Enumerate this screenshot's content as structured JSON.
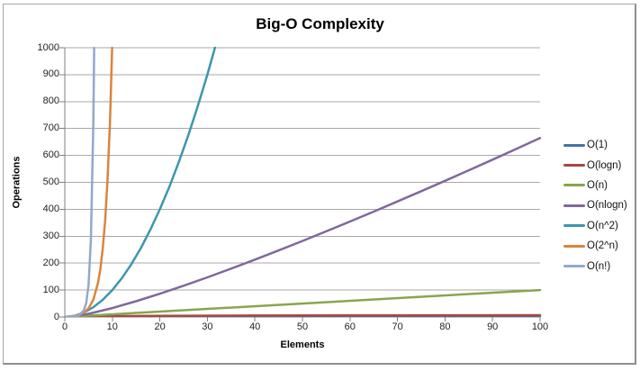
{
  "window": {
    "border_color": "#a6a6a6",
    "background": "#ffffff"
  },
  "chart_data": {
    "type": "line",
    "title": "Big-O Complexity",
    "xlabel": "Elements",
    "ylabel": "Operations",
    "xlim": [
      0,
      100
    ],
    "ylim": [
      0,
      1000
    ],
    "x_ticks": [
      0,
      10,
      20,
      30,
      40,
      50,
      60,
      70,
      80,
      90,
      100
    ],
    "y_ticks": [
      0,
      100,
      200,
      300,
      400,
      500,
      600,
      700,
      800,
      900,
      1000
    ],
    "grid": "horizontal",
    "grid_color": "#a8a8a8",
    "axis_color": "#808080",
    "legend_position": "right",
    "series": [
      {
        "name": "O(1)",
        "color": "#4572A7",
        "points": [
          [
            0,
            1
          ],
          [
            100,
            1
          ]
        ]
      },
      {
        "name": "O(logn)",
        "color": "#AA4643",
        "points": [
          [
            1,
            0
          ],
          [
            2,
            1
          ],
          [
            3,
            1.58
          ],
          [
            5,
            2.32
          ],
          [
            10,
            3.32
          ],
          [
            20,
            4.32
          ],
          [
            40,
            5.32
          ],
          [
            70,
            6.13
          ],
          [
            100,
            6.64
          ]
        ]
      },
      {
        "name": "O(n)",
        "color": "#89A54E",
        "points": [
          [
            0,
            0
          ],
          [
            100,
            100
          ]
        ]
      },
      {
        "name": "O(nlogn)",
        "color": "#80699B",
        "points": [
          [
            1,
            0
          ],
          [
            5,
            11.6
          ],
          [
            10,
            33.2
          ],
          [
            15,
            58.6
          ],
          [
            20,
            86.4
          ],
          [
            25,
            116.1
          ],
          [
            30,
            147.2
          ],
          [
            35,
            179.5
          ],
          [
            40,
            212.9
          ],
          [
            45,
            247.1
          ],
          [
            50,
            282.2
          ],
          [
            55,
            318
          ],
          [
            60,
            354.4
          ],
          [
            65,
            391.4
          ],
          [
            70,
            429
          ],
          [
            75,
            467.1
          ],
          [
            80,
            505.8
          ],
          [
            85,
            544.8
          ],
          [
            90,
            584.3
          ],
          [
            95,
            624.2
          ],
          [
            100,
            664.4
          ]
        ]
      },
      {
        "name": "O(n^2)",
        "color": "#3D96AE",
        "points": [
          [
            0,
            0
          ],
          [
            2,
            4
          ],
          [
            4,
            16
          ],
          [
            6,
            36
          ],
          [
            8,
            64
          ],
          [
            10,
            100
          ],
          [
            12,
            144
          ],
          [
            14,
            196
          ],
          [
            16,
            256
          ],
          [
            18,
            324
          ],
          [
            20,
            400
          ],
          [
            22,
            484
          ],
          [
            24,
            576
          ],
          [
            26,
            676
          ],
          [
            28,
            784
          ],
          [
            30,
            900
          ],
          [
            31.6,
            1000
          ]
        ]
      },
      {
        "name": "O(2^n)",
        "color": "#DB843D",
        "points": [
          [
            0,
            1
          ],
          [
            1,
            2
          ],
          [
            2,
            4
          ],
          [
            3,
            8
          ],
          [
            4,
            16
          ],
          [
            5,
            32
          ],
          [
            6,
            64
          ],
          [
            7,
            128
          ],
          [
            7.5,
            181
          ],
          [
            8,
            256
          ],
          [
            8.5,
            362
          ],
          [
            9,
            512
          ],
          [
            9.5,
            724
          ],
          [
            9.97,
            1000
          ]
        ]
      },
      {
        "name": "O(n!)",
        "color": "#92A8CD",
        "points": [
          [
            0,
            1
          ],
          [
            1,
            1
          ],
          [
            2,
            2
          ],
          [
            3,
            6
          ],
          [
            4,
            24
          ],
          [
            4.5,
            52
          ],
          [
            5,
            120
          ],
          [
            5.5,
            288
          ],
          [
            6,
            720
          ],
          [
            6.18,
            1000
          ]
        ]
      }
    ]
  }
}
